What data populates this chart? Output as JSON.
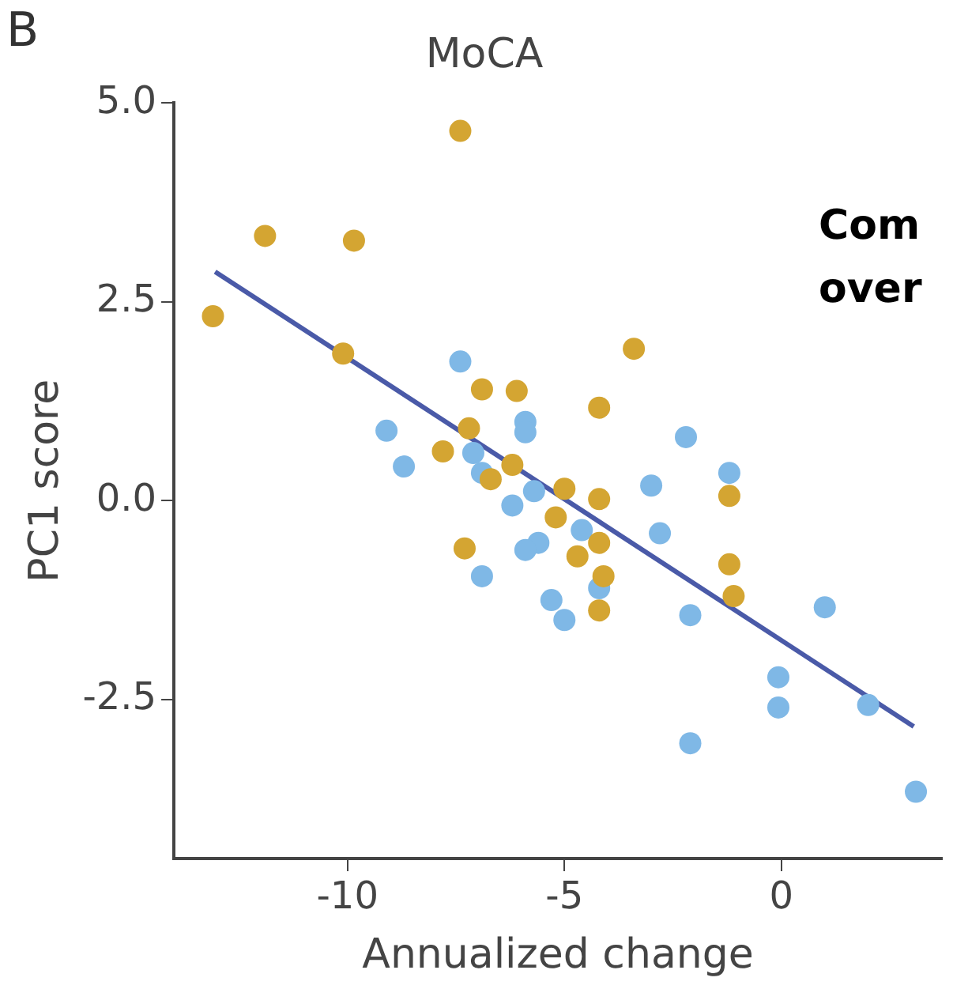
{
  "chart_data": {
    "type": "scatter",
    "title": "MoCA",
    "xlabel": "Annualized change",
    "ylabel": "PC1 score",
    "annotations": [
      "B",
      "Com",
      "over"
    ],
    "xlim": [
      -14,
      3.7
    ],
    "xticks": [
      -10,
      -5,
      0
    ],
    "ylim": [
      -4.5,
      5.0
    ],
    "yticks": [
      {
        "value": 5,
        "label": "5.0"
      },
      {
        "value": 2.5,
        "label": "2.5"
      },
      {
        "value": 0,
        "label": "0.0"
      },
      {
        "value": -2.5,
        "label": "-2.5"
      }
    ],
    "grid": false,
    "legend": false,
    "marker": "circle",
    "series": [
      {
        "color": "#d4a532",
        "x": [
          -7.4,
          -11.9,
          -9.85,
          -13.1,
          -10.1,
          -6.9,
          -6.1,
          -7.2,
          -7.8,
          -6.7,
          -6.2,
          -3.4,
          -4.2,
          -1.2,
          -5.0,
          -4.2,
          -5.2,
          -7.3,
          -4.7,
          -4.2,
          -1.2,
          -1.1,
          -4.1,
          -4.2
        ],
        "values": [
          4.65,
          3.33,
          3.27,
          2.32,
          1.85,
          1.4,
          1.38,
          0.91,
          0.62,
          0.27,
          0.45,
          1.91,
          1.17,
          0.06,
          0.15,
          0.02,
          -0.21,
          -0.6,
          -0.7,
          -0.53,
          -0.8,
          -1.2,
          -0.95,
          -1.38
        ]
      },
      {
        "color": "#7fb8e6",
        "x": [
          -7.4,
          -9.1,
          -8.7,
          -5.9,
          -5.9,
          -7.1,
          -6.9,
          -6.2,
          -5.7,
          -2.2,
          -1.2,
          -3.0,
          -2.8,
          -4.6,
          -5.6,
          -5.9,
          -6.9,
          -4.2,
          -5.3,
          -5.0,
          -2.1,
          1.0,
          -0.07,
          -0.07,
          -2.1,
          2.0,
          3.1
        ],
        "values": [
          1.75,
          0.88,
          0.43,
          0.99,
          0.86,
          0.6,
          0.35,
          -0.06,
          0.12,
          0.8,
          0.35,
          0.19,
          -0.41,
          -0.37,
          -0.53,
          -0.62,
          -0.95,
          -1.1,
          -1.25,
          -1.5,
          -1.44,
          -1.34,
          -2.22,
          -2.6,
          -3.05,
          -2.57,
          -3.66
        ]
      },
      {
        "type": "line",
        "color": "#4a5aa8",
        "line_style": "solid",
        "marker": "none",
        "x": [
          -13.05,
          3.05
        ],
        "values": [
          2.88,
          -2.84
        ]
      }
    ]
  }
}
